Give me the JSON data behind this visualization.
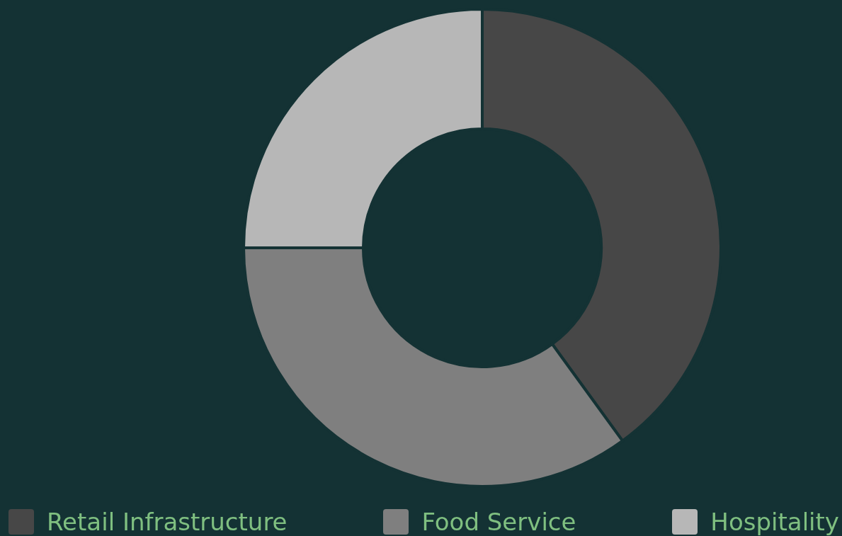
{
  "chart_data": {
    "type": "donut",
    "categories": [
      "Retail Infrastructure",
      "Food Service",
      "Hospitality"
    ],
    "values": [
      40,
      35,
      25
    ],
    "colors": [
      "#474747",
      "#7f7f7f",
      "#b7b7b7"
    ],
    "legend": "bottom"
  }
}
